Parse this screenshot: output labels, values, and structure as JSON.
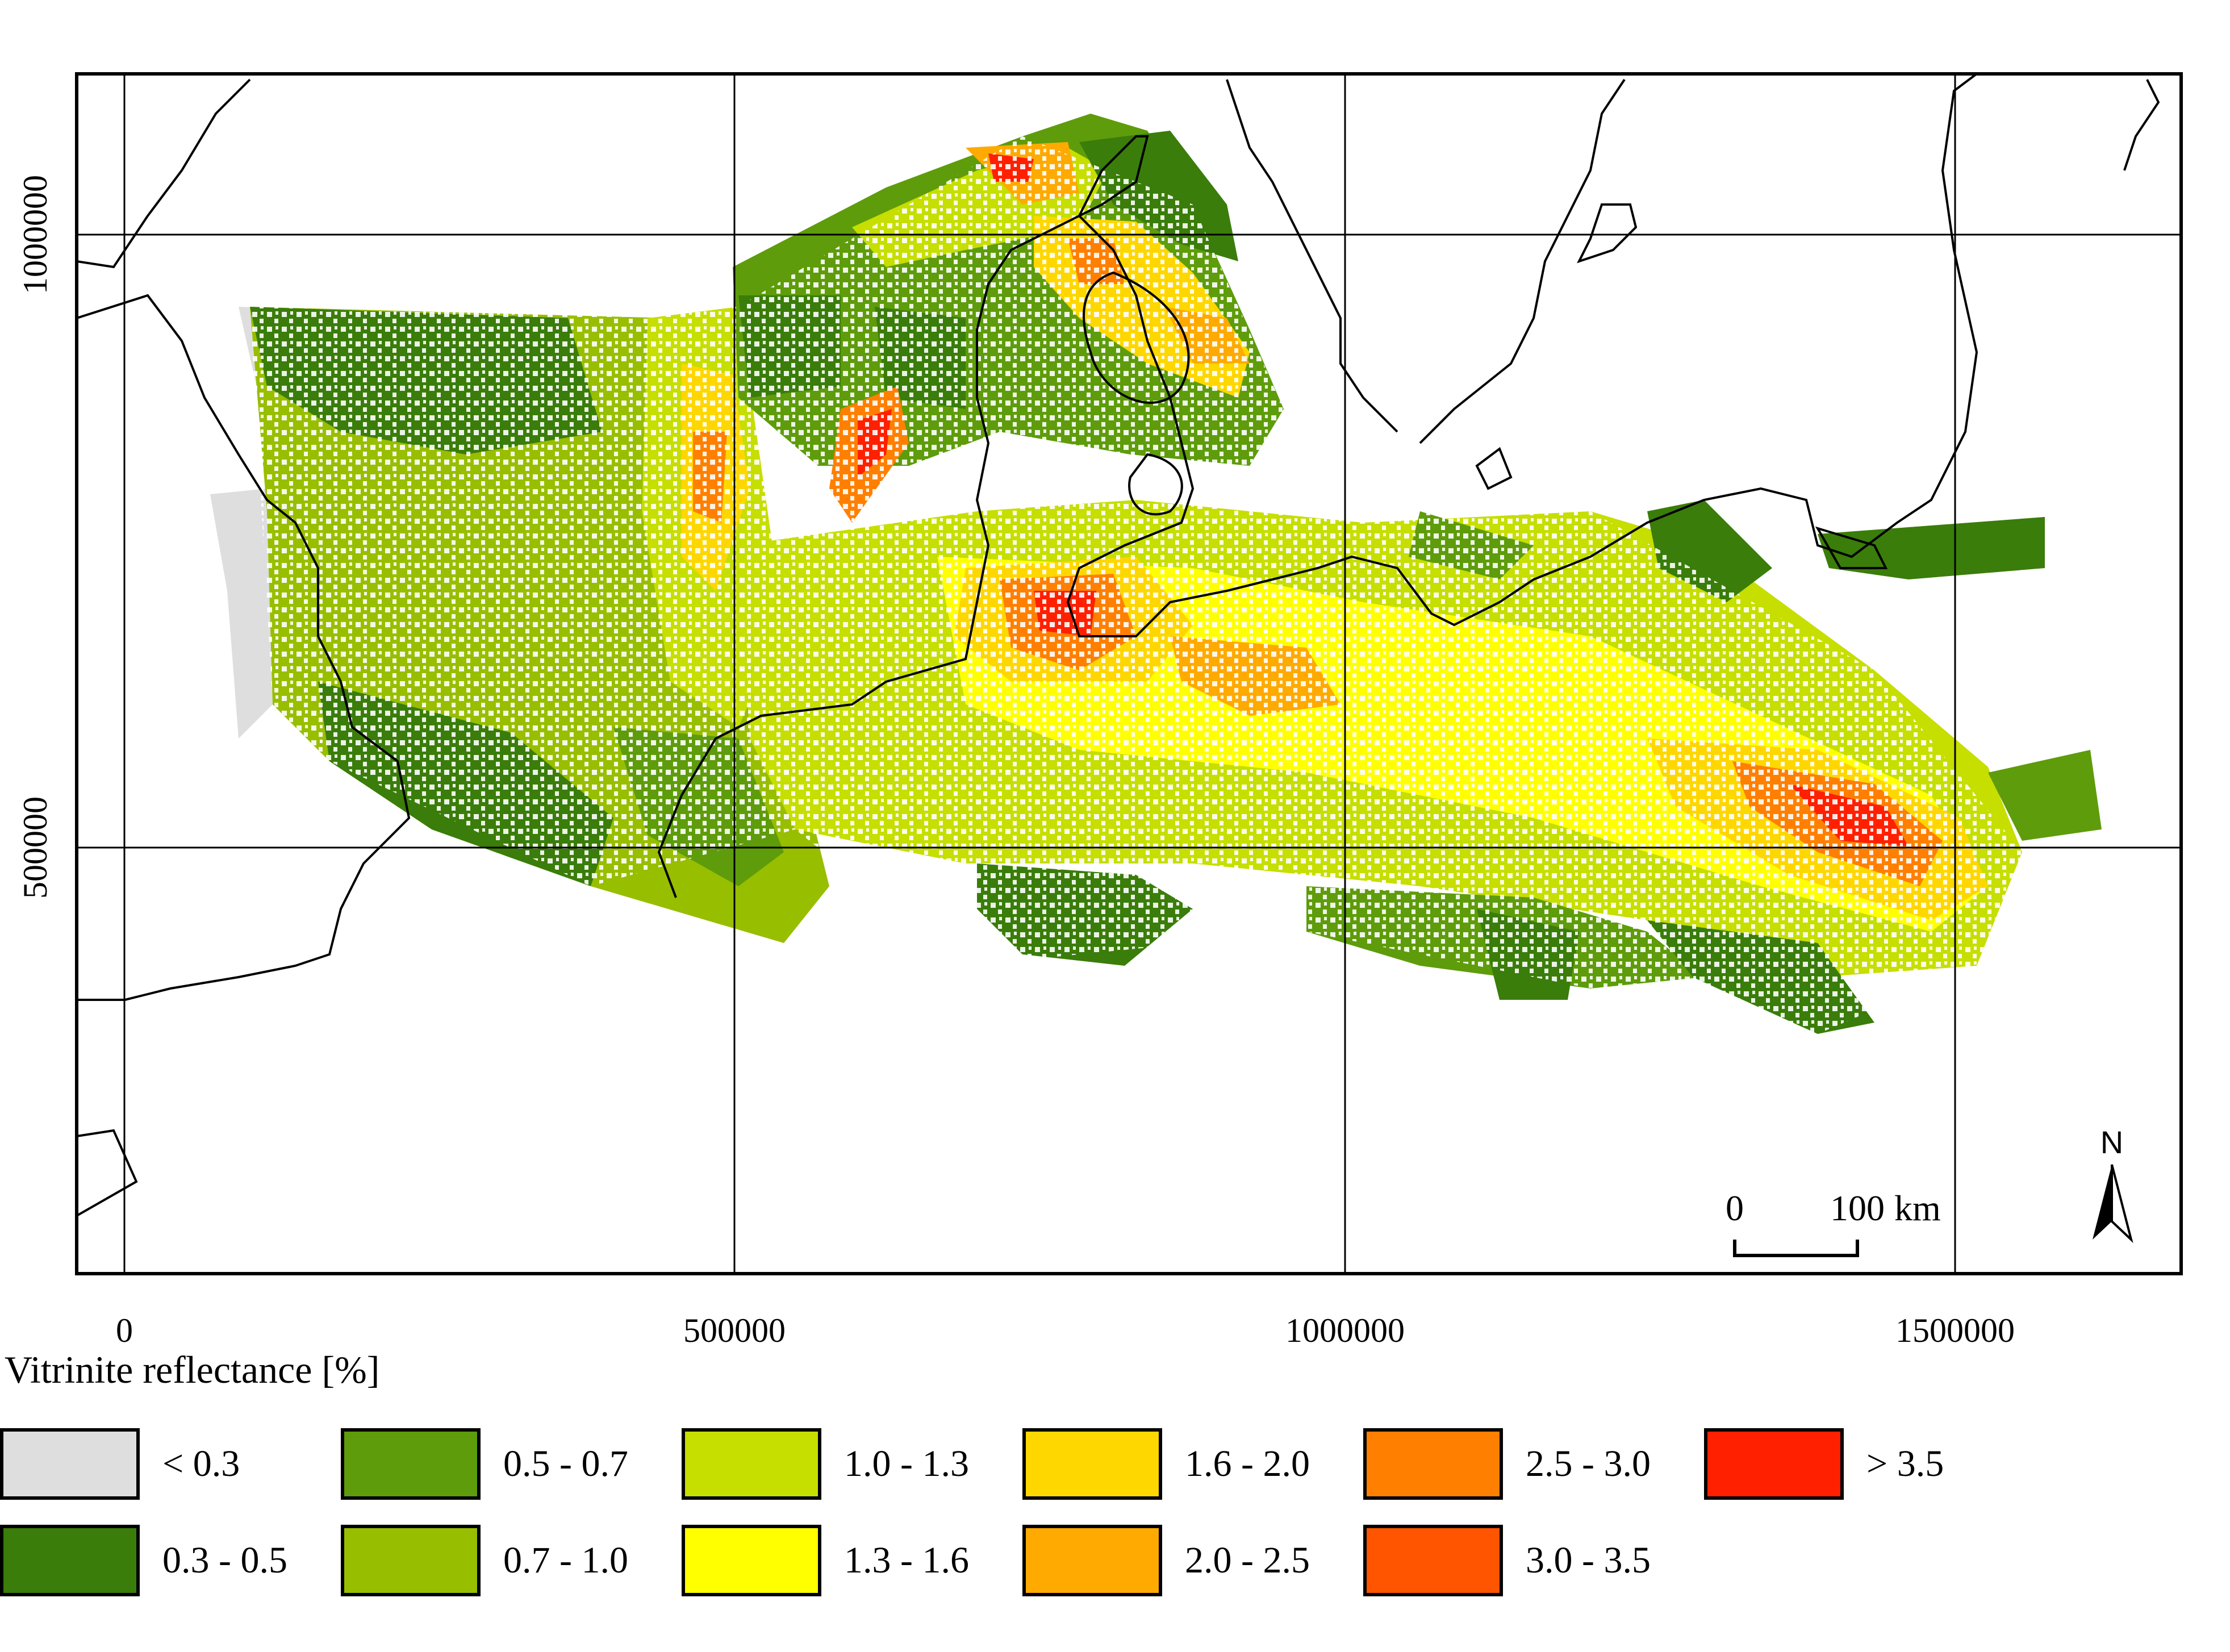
{
  "x_ticks": [
    "0",
    "500000",
    "1000000",
    "1500000"
  ],
  "y_ticks": [
    "1000000",
    "500000"
  ],
  "legend": {
    "title": "Vitrinite reflectance [%]",
    "classes": [
      {
        "label": "< 0.3",
        "color": "#dedede"
      },
      {
        "label": "0.3 - 0.5",
        "color": "#3a7d0a"
      },
      {
        "label": "0.5 - 0.7",
        "color": "#5e9c0b"
      },
      {
        "label": "0.7 - 1.0",
        "color": "#98be00"
      },
      {
        "label": "1.0 - 1.3",
        "color": "#c6de00"
      },
      {
        "label": "1.3 - 1.6",
        "color": "#ffff00"
      },
      {
        "label": "1.6 - 2.0",
        "color": "#ffd700"
      },
      {
        "label": "2.0 - 2.5",
        "color": "#ffaa00"
      },
      {
        "label": "2.5 - 3.0",
        "color": "#ff8000"
      },
      {
        "label": "3.0 - 3.5",
        "color": "#ff5500"
      },
      {
        "label": "> 3.5",
        "color": "#ff2000"
      }
    ]
  },
  "scale_bar": {
    "start": "0",
    "end": "100",
    "unit": "km"
  },
  "north_arrow": {
    "label": "N",
    "icon": "north-arrow-icon"
  }
}
